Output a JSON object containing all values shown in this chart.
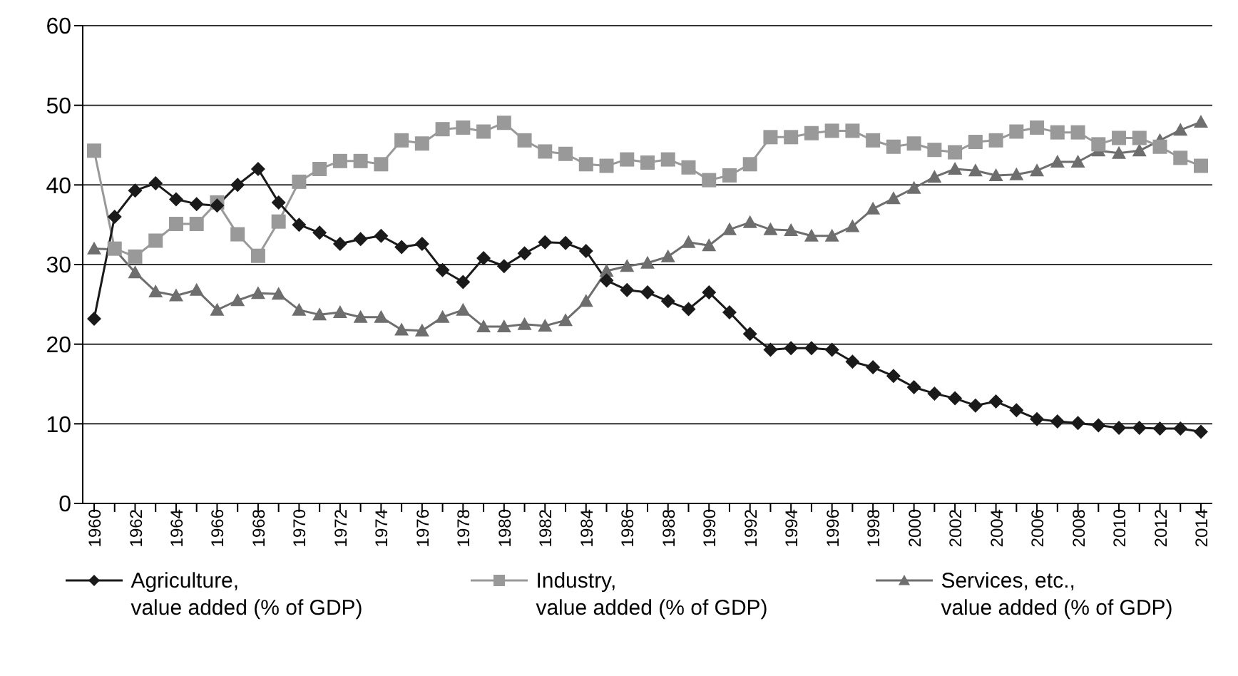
{
  "chart_data": {
    "type": "line",
    "categories": [
      "1960",
      null,
      "1962",
      null,
      "1964",
      null,
      "1966",
      null,
      "1968",
      null,
      "1970",
      null,
      "1972",
      null,
      "1974",
      null,
      "1976",
      null,
      "1978",
      null,
      "1980",
      null,
      "1982",
      null,
      "1984",
      null,
      "1986",
      null,
      "1988",
      null,
      "1990",
      null,
      "1992",
      null,
      "1994",
      null,
      "1996",
      null,
      "1998",
      null,
      "2000",
      null,
      "2002",
      null,
      "2004",
      null,
      "2006",
      null,
      "2008",
      null,
      "2010",
      null,
      "2012",
      null,
      "2014"
    ],
    "series": [
      {
        "name": "Agriculture,\nvalue added (% of GDP)",
        "color": "#1a1a1a",
        "marker": "diamond",
        "values": [
          23.2,
          36,
          39.3,
          40.2,
          38.2,
          37.6,
          37.4,
          40,
          42,
          37.8,
          35,
          34,
          32.6,
          33.2,
          33.6,
          32.2,
          32.6,
          29.3,
          27.8,
          30.8,
          29.8,
          31.4,
          32.8,
          32.7,
          31.7,
          28,
          26.8,
          26.5,
          25.4,
          24.4,
          26.5,
          24,
          21.3,
          19.3,
          19.5,
          19.5,
          19.3,
          17.8,
          17.1,
          16,
          14.6,
          13.8,
          13.2,
          12.3,
          12.8,
          11.7,
          10.6,
          10.3,
          10.1,
          9.8,
          9.5,
          9.5,
          9.4,
          9.4,
          9
        ]
      },
      {
        "name": "Industry,\nvalue added (% of GDP)",
        "color": "#999999",
        "marker": "square",
        "values": [
          44.3,
          32,
          31,
          33,
          35.1,
          35.1,
          37.8,
          33.8,
          31.1,
          35.4,
          40.4,
          42,
          43,
          43,
          42.6,
          45.6,
          45.2,
          47,
          47.2,
          46.7,
          47.8,
          45.6,
          44.2,
          43.9,
          42.6,
          42.4,
          43.2,
          42.8,
          43.2,
          42.2,
          40.6,
          41.2,
          42.6,
          46,
          46,
          46.5,
          46.8,
          46.8,
          45.6,
          44.8,
          45.2,
          44.4,
          44.1,
          45.4,
          45.6,
          46.7,
          47.2,
          46.6,
          46.6,
          45.1,
          45.9,
          45.9,
          44.8,
          43.4,
          42.4
        ]
      },
      {
        "name": "Services, etc.,\nvalue added (% of GDP)",
        "color": "#6e6e6e",
        "marker": "triangle",
        "values": [
          32,
          31.9,
          29,
          26.6,
          26.1,
          26.8,
          24.3,
          25.5,
          26.4,
          26.3,
          24.3,
          23.7,
          24,
          23.4,
          23.4,
          21.8,
          21.7,
          23.4,
          24.3,
          22.2,
          22.2,
          22.5,
          22.3,
          23,
          25.4,
          29.2,
          29.8,
          30.2,
          31,
          32.8,
          32.4,
          34.4,
          35.3,
          34.4,
          34.3,
          33.6,
          33.6,
          34.8,
          37,
          38.3,
          39.6,
          41,
          42,
          41.8,
          41.2,
          41.3,
          41.8,
          42.9,
          42.9,
          44.3,
          44,
          44.3,
          45.6,
          46.9,
          47.9
        ]
      }
    ],
    "ylim": [
      0,
      60
    ],
    "yticks": [
      0,
      10,
      20,
      30,
      40,
      50,
      60
    ],
    "grid": "y",
    "legend": "bottom",
    "line_style": "solid"
  }
}
